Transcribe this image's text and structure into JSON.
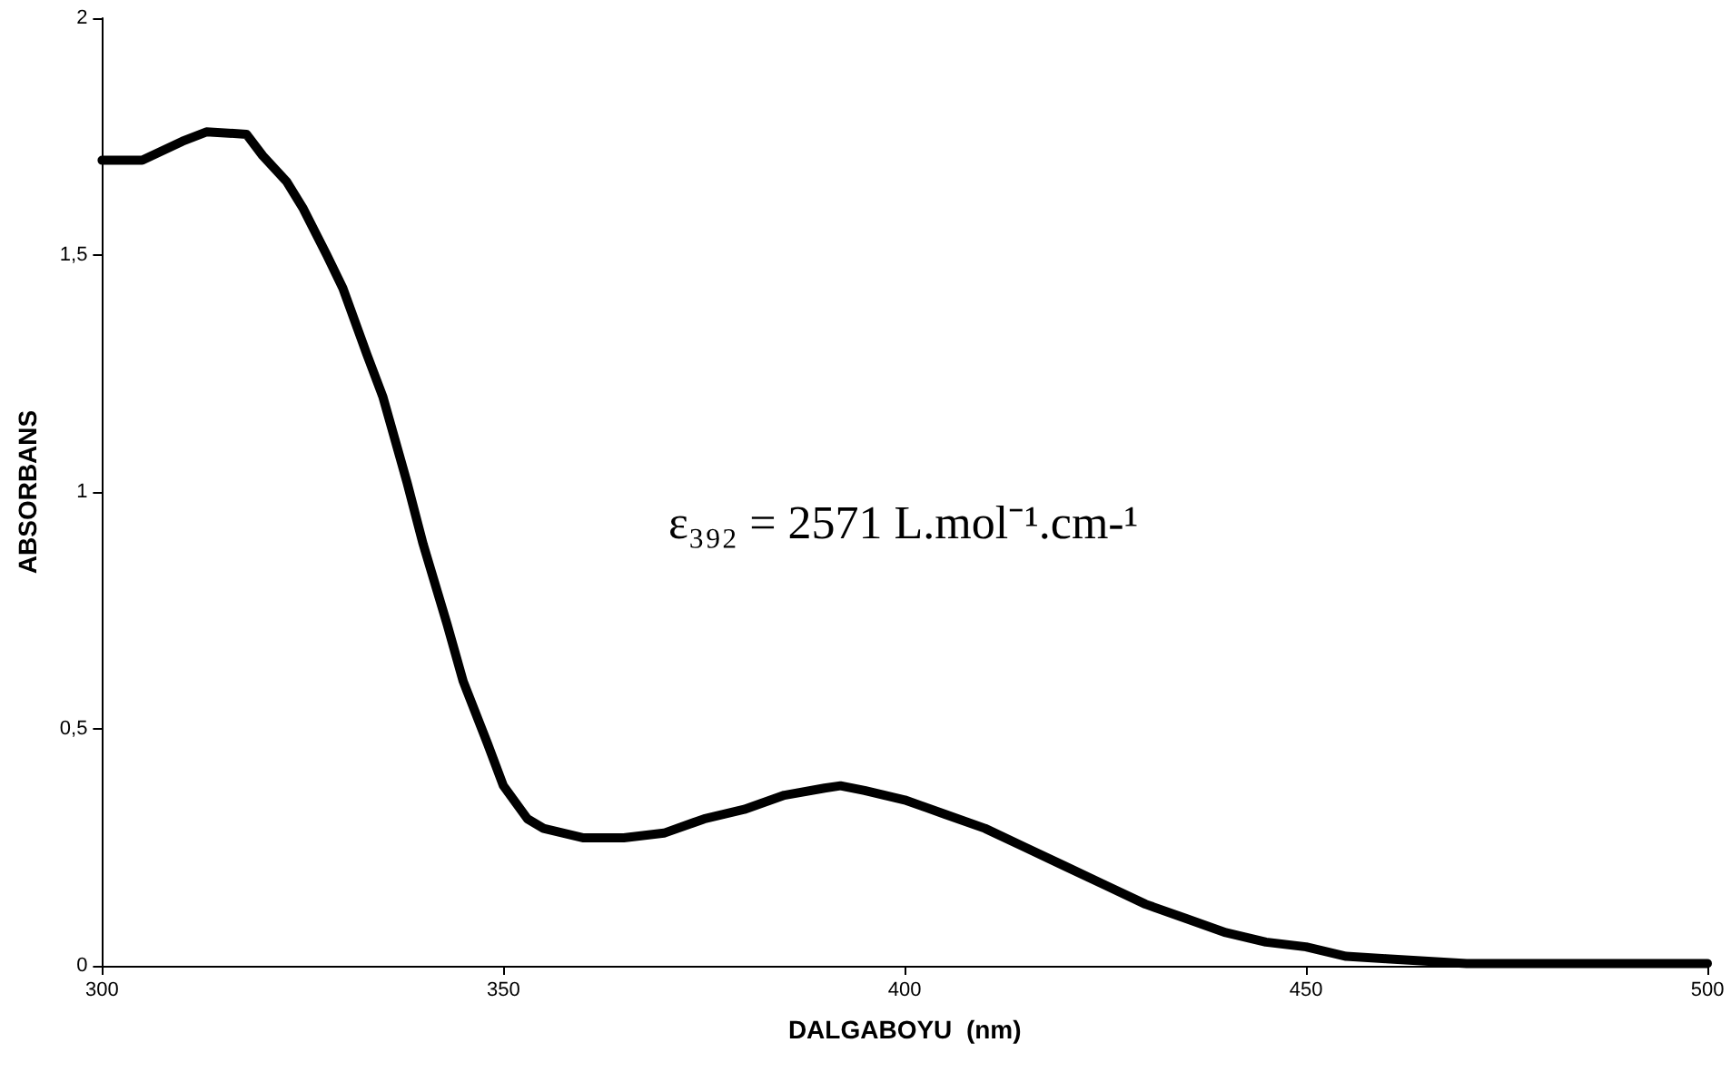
{
  "chart_data": {
    "type": "line",
    "xlabel": "DALGABOYU  (nm)",
    "ylabel": "ABSORBANS",
    "annotations": [
      "ε₃₉₂ = 2571 L.mol⁻¹.cm-¹"
    ],
    "xlim": [
      300,
      500
    ],
    "xticks": [
      300,
      350,
      400,
      450,
      500
    ],
    "ylim": [
      0,
      2
    ],
    "yticks": [
      0,
      {
        "value": 0.5,
        "label": "0,5"
      },
      1,
      {
        "value": 1.5,
        "label": "1,5"
      },
      2
    ],
    "marker": "none",
    "line_style": "solid",
    "series": [
      {
        "color": "#000000",
        "x": [
          300,
          305,
          310,
          313,
          318,
          320,
          323,
          325,
          328,
          330,
          333,
          335,
          338,
          340,
          343,
          345,
          348,
          350,
          353,
          355,
          360,
          365,
          370,
          375,
          380,
          385,
          390,
          392,
          395,
          400,
          405,
          410,
          415,
          420,
          425,
          430,
          435,
          440,
          445,
          450,
          455,
          460,
          470,
          480,
          490,
          500
        ],
        "values": [
          1.7,
          1.7,
          1.74,
          1.76,
          1.755,
          1.71,
          1.655,
          1.6,
          1.5,
          1.43,
          1.29,
          1.2,
          1.02,
          0.89,
          0.72,
          0.6,
          0.47,
          0.38,
          0.31,
          0.29,
          0.27,
          0.27,
          0.28,
          0.31,
          0.33,
          0.36,
          0.375,
          0.38,
          0.37,
          0.35,
          0.32,
          0.29,
          0.25,
          0.21,
          0.17,
          0.13,
          0.1,
          0.07,
          0.05,
          0.04,
          0.02,
          0.015,
          0.005,
          0.005,
          0.005,
          0.005
        ]
      }
    ]
  }
}
